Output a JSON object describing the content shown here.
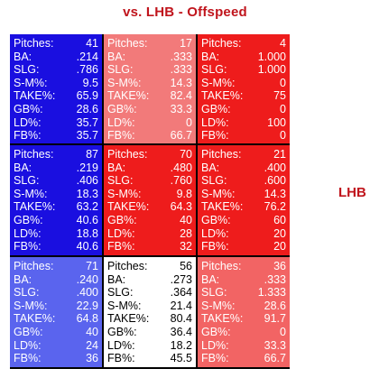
{
  "title": "vs. LHB - Offspeed",
  "side_label": "LHB",
  "chart_data": {
    "type": "table",
    "title": "vs. LHB - Offspeed",
    "row_label": "LHB",
    "stat_labels": [
      "Pitches:",
      "BA:",
      "SLG:",
      "S-M%:",
      "TAKE%:",
      "GB%:",
      "LD%:",
      "FB%:"
    ],
    "cells": [
      {
        "bg": "#1a0fe0",
        "fg": "#ffffff",
        "values": [
          "41",
          ".214",
          ".786",
          "9.5",
          "65.9",
          "28.6",
          "35.7",
          "35.7"
        ]
      },
      {
        "bg": "#f27a7a",
        "fg": "#ffffff",
        "values": [
          "17",
          ".333",
          ".333",
          "14.3",
          "82.4",
          "33.3",
          "0",
          "66.7"
        ]
      },
      {
        "bg": "#ee1c1c",
        "fg": "#ffffff",
        "values": [
          "4",
          "1.000",
          "1.000",
          "0",
          "75",
          "0",
          "100",
          "0"
        ]
      },
      {
        "bg": "#1a0fe0",
        "fg": "#ffffff",
        "values": [
          "87",
          ".219",
          ".406",
          "18.3",
          "63.2",
          "40.6",
          "18.8",
          "40.6"
        ]
      },
      {
        "bg": "#ee1c1c",
        "fg": "#ffffff",
        "values": [
          "70",
          ".480",
          ".760",
          "9.8",
          "64.3",
          "40",
          "28",
          "32"
        ]
      },
      {
        "bg": "#ee1c1c",
        "fg": "#ffffff",
        "values": [
          "21",
          ".400",
          ".600",
          "14.3",
          "76.2",
          "60",
          "20",
          "20"
        ]
      },
      {
        "bg": "#5a64ee",
        "fg": "#ffffff",
        "values": [
          "71",
          ".240",
          ".400",
          "22.9",
          "64.8",
          "40",
          "24",
          "36"
        ]
      },
      {
        "bg": "#ffffff",
        "fg": "#000000",
        "values": [
          "56",
          ".273",
          ".364",
          "21.4",
          "80.4",
          "36.4",
          "18.2",
          "45.5"
        ]
      },
      {
        "bg": "#f26464",
        "fg": "#ffffff",
        "values": [
          "36",
          ".333",
          "1.333",
          "28.6",
          "91.7",
          "0",
          "33.3",
          "66.7"
        ]
      }
    ]
  }
}
